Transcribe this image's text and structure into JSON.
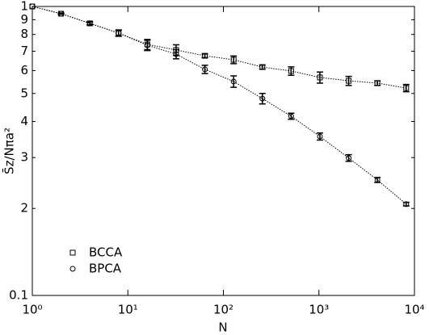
{
  "chart_data": {
    "type": "line",
    "log_x": true,
    "log_y": true,
    "x_label": "N",
    "y_label": "S̄z/Nπa²",
    "x": [
      1,
      2,
      4,
      8,
      16,
      32,
      64,
      128,
      256,
      512,
      1024,
      2048,
      4096,
      8192
    ],
    "series": [
      {
        "name": "BCCA",
        "color": "#000000",
        "marker": "square",
        "values": [
          1.0,
          0.944,
          0.874,
          0.809,
          0.739,
          0.707,
          0.675,
          0.654,
          0.617,
          0.598,
          0.568,
          0.553,
          0.543,
          0.522
        ],
        "errors": [
          0,
          0.005,
          0.01,
          0.02,
          0.03,
          0.03,
          0.01,
          0.02,
          0.01,
          0.02,
          0.025,
          0.02,
          0.01,
          0.015
        ]
      },
      {
        "name": "BPCA",
        "color": "#000000",
        "marker": "circle",
        "values": [
          1.0,
          0.944,
          0.874,
          0.809,
          0.734,
          0.684,
          0.606,
          0.55,
          0.48,
          0.417,
          0.355,
          0.299,
          0.251,
          0.207
        ],
        "errors": [
          0,
          0.005,
          0.01,
          0.02,
          0.03,
          0.025,
          0.02,
          0.025,
          0.02,
          0.01,
          0.01,
          0.008,
          0.005,
          0.003
        ]
      }
    ],
    "xlim": [
      1,
      10000
    ],
    "xticks": [
      {
        "value": 1,
        "label": "10⁰"
      },
      {
        "value": 10,
        "label": "10¹"
      },
      {
        "value": 100,
        "label": "10²"
      },
      {
        "value": 1000,
        "label": "10³"
      },
      {
        "value": 10000,
        "label": "10⁴"
      }
    ],
    "ylim": [
      0.1,
      1
    ],
    "yticks": [
      0.1,
      {
        "value": 0.2,
        "label": "2"
      },
      {
        "value": 0.3,
        "label": "3"
      },
      {
        "value": 0.4,
        "label": "4"
      },
      {
        "value": 0.5,
        "label": "5"
      },
      {
        "value": 0.6,
        "label": "6"
      },
      {
        "value": 0.7,
        "label": "7"
      },
      {
        "value": 0.8,
        "label": "8"
      },
      {
        "value": 0.9,
        "label": "9"
      },
      1
    ],
    "legend": "lower left",
    "grid": false
  }
}
